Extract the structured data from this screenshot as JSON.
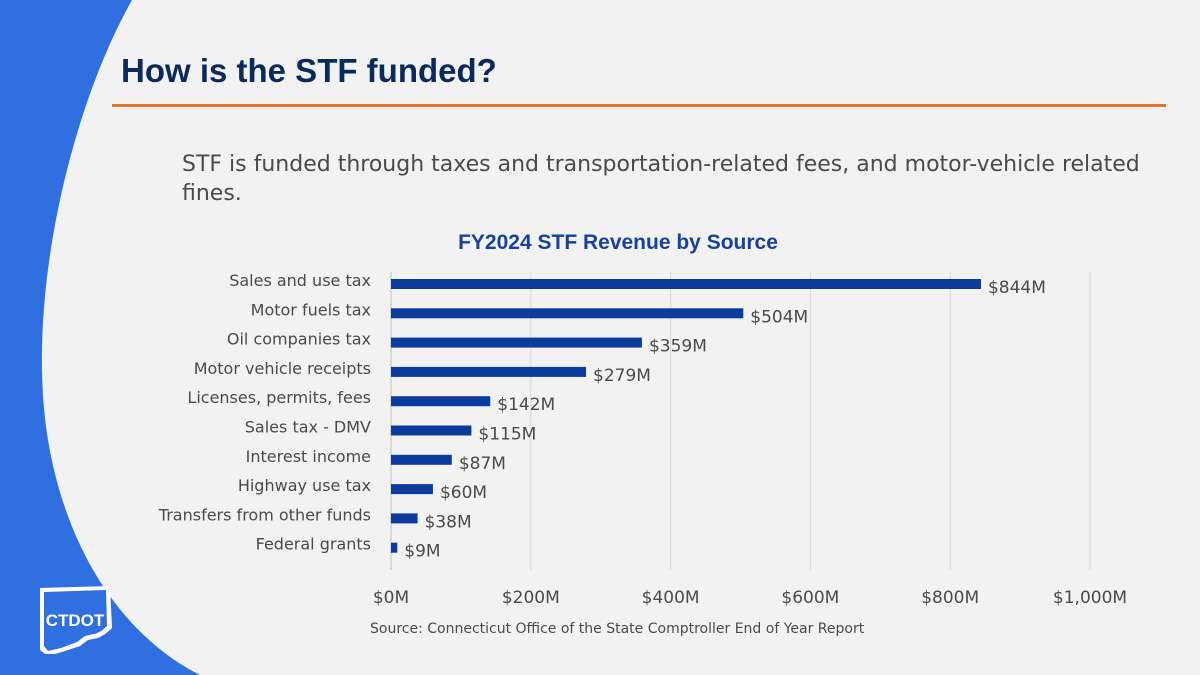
{
  "slide": {
    "title": "How is the STF funded?",
    "subtitle": "STF is funded through taxes and transportation-related fees, and motor-vehicle related fines.",
    "logo_text": "CTDOT"
  },
  "colors": {
    "background": "#f2f2f2",
    "left_band": "#2f6fe0",
    "title": "#0b2a5c",
    "rule": "#e5732c",
    "bar": "#0c3b9e",
    "chart_title": "#1740a0",
    "text": "#4a4a4a"
  },
  "chart_data": {
    "type": "bar",
    "orientation": "horizontal",
    "title": "FY2024 STF Revenue by Source",
    "categories": [
      "Sales and use tax",
      "Motor fuels tax",
      "Oil companies tax",
      "Motor vehicle receipts",
      "Licenses, permits, fees",
      "Sales tax - DMV",
      "Interest income",
      "Highway use tax",
      "Transfers from other funds",
      "Federal grants"
    ],
    "values": [
      844,
      504,
      359,
      279,
      142,
      115,
      87,
      60,
      38,
      9
    ],
    "data_labels": [
      "$844M",
      "$504M",
      "$359M",
      "$279M",
      "$142M",
      "$115M",
      "$87M",
      "$60M",
      "$38M",
      "$9M"
    ],
    "xlim": [
      0,
      1000
    ],
    "xticks": [
      0,
      200,
      400,
      600,
      800,
      1000
    ],
    "xtick_labels": [
      "$0M",
      "$200M",
      "$400M",
      "$600M",
      "$800M",
      "$1,000M"
    ],
    "grid": "vertical",
    "legend": "none",
    "source": "Source: Connecticut Office of the State Comptroller End of Year Report"
  }
}
